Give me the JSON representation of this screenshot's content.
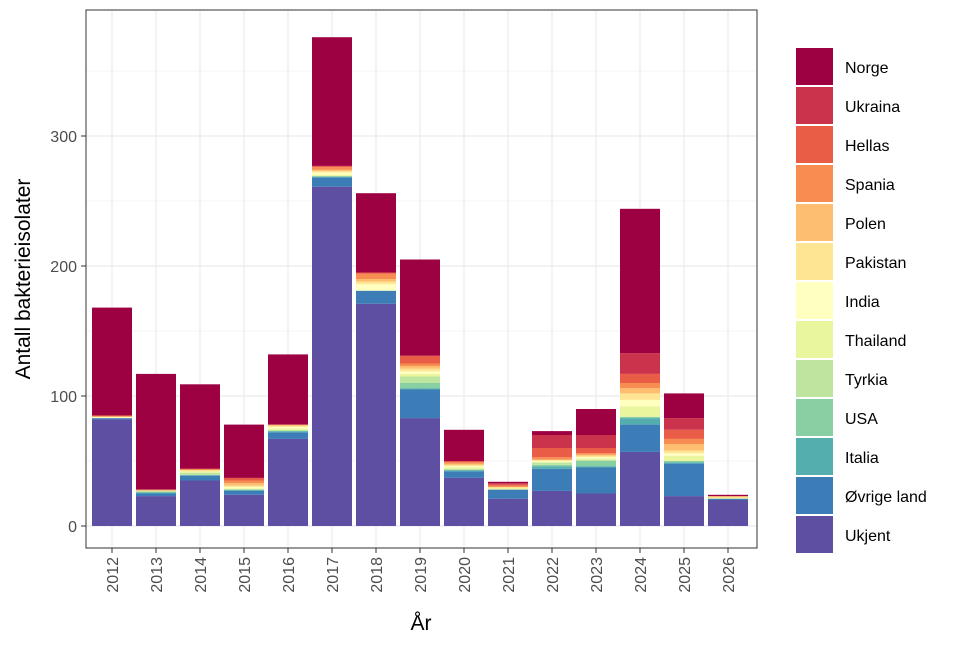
{
  "chart_data": {
    "type": "bar",
    "stacked": true,
    "xlabel": "År",
    "ylabel": "Antall bakterieisolater",
    "ylim": [
      0,
      385
    ],
    "yticks": [
      0,
      100,
      200,
      300
    ],
    "grid": true,
    "legend_position": "right",
    "categories": [
      "2012",
      "2013",
      "2014",
      "2015",
      "2016",
      "2017",
      "2018",
      "2019",
      "2020",
      "2021",
      "2022",
      "2023",
      "2024",
      "2025",
      "2026"
    ],
    "legend_order": [
      "Norge",
      "Ukraina",
      "Hellas",
      "Spania",
      "Polen",
      "Pakistan",
      "India",
      "Thailand",
      "Tyrkia",
      "USA",
      "Italia",
      "Øvrige land",
      "Ukjent"
    ],
    "series": [
      {
        "name": "Ukjent",
        "color": "#5E4FA2",
        "values": [
          82,
          23,
          35,
          24,
          67,
          261,
          171,
          83,
          37,
          21,
          27,
          25,
          57,
          23,
          20
        ]
      },
      {
        "name": "Øvrige land",
        "color": "#3C7DB8",
        "values": [
          1,
          2,
          4,
          3,
          5,
          7,
          10,
          22,
          5,
          7,
          17,
          20,
          21,
          25,
          1
        ]
      },
      {
        "name": "Italia",
        "color": "#54AEAD",
        "values": [
          0,
          1,
          0,
          1,
          1,
          1,
          0,
          1,
          1,
          0,
          2,
          1,
          5,
          1,
          0
        ]
      },
      {
        "name": "USA",
        "color": "#88CFA4",
        "values": [
          0,
          0,
          0,
          0,
          0,
          0,
          0,
          4,
          0,
          0,
          1,
          4,
          1,
          1,
          0
        ]
      },
      {
        "name": "Tyrkia",
        "color": "#BEE5A0",
        "values": [
          0,
          1,
          2,
          0,
          1,
          0,
          0,
          5,
          1,
          0,
          2,
          1,
          0,
          0,
          0
        ]
      },
      {
        "name": "Thailand",
        "color": "#EAF69E",
        "values": [
          0,
          0,
          1,
          1,
          1,
          1,
          0,
          2,
          1,
          1,
          0,
          1,
          8,
          4,
          1
        ]
      },
      {
        "name": "India",
        "color": "#FFFFBF",
        "values": [
          1,
          0,
          0,
          1,
          1,
          2,
          5,
          2,
          1,
          0,
          1,
          1,
          5,
          2,
          0
        ]
      },
      {
        "name": "Pakistan",
        "color": "#FEE593",
        "values": [
          0,
          0,
          1,
          1,
          1,
          1,
          2,
          2,
          1,
          1,
          1,
          1,
          5,
          2,
          0
        ]
      },
      {
        "name": "Polen",
        "color": "#FDBE6F",
        "values": [
          0,
          1,
          0,
          2,
          1,
          1,
          2,
          2,
          1,
          0,
          0,
          1,
          4,
          5,
          1
        ]
      },
      {
        "name": "Spania",
        "color": "#F88D51",
        "values": [
          1,
          0,
          1,
          2,
          0,
          2,
          4,
          2,
          1,
          1,
          2,
          1,
          4,
          4,
          0
        ]
      },
      {
        "name": "Hellas",
        "color": "#E95D47",
        "values": [
          0,
          0,
          0,
          2,
          0,
          1,
          1,
          6,
          1,
          1,
          7,
          4,
          7,
          7,
          0
        ]
      },
      {
        "name": "Ukraina",
        "color": "#CB334C",
        "values": [
          0,
          0,
          0,
          0,
          0,
          0,
          0,
          0,
          0,
          1,
          10,
          10,
          16,
          9,
          0
        ]
      },
      {
        "name": "Norge",
        "color": "#9E0142",
        "values": [
          83,
          89,
          65,
          41,
          54,
          99,
          61,
          74,
          24,
          1,
          3,
          20,
          111,
          19,
          1
        ]
      }
    ]
  }
}
